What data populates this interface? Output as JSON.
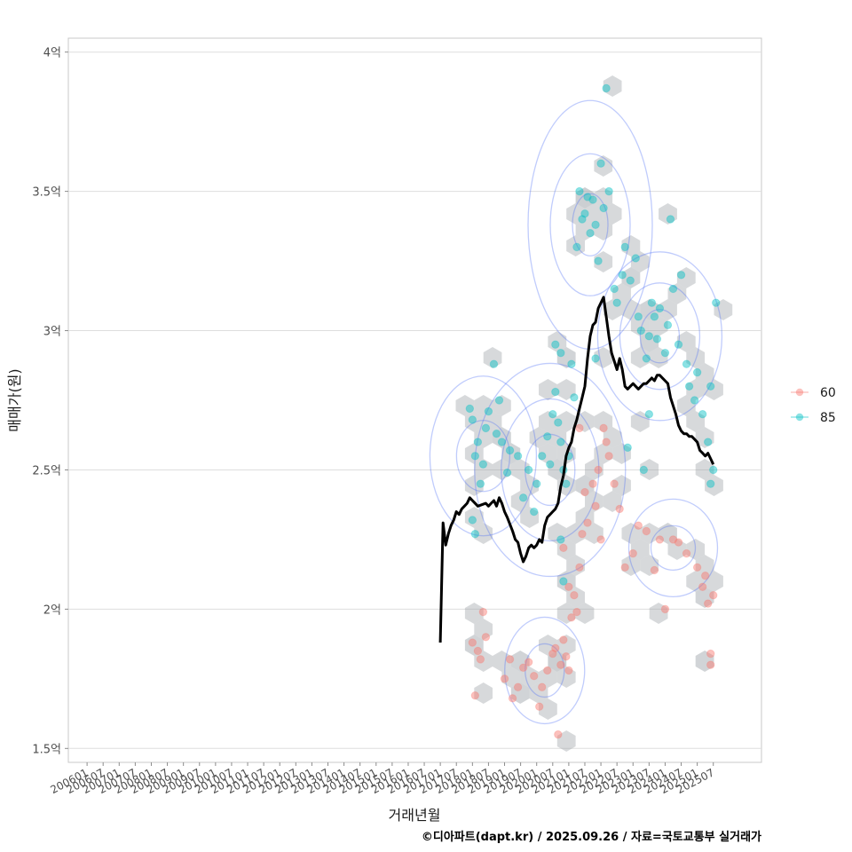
{
  "chart_data": {
    "type": "scatter",
    "title": "",
    "xlabel": "거래년월",
    "ylabel": "매매가(원)",
    "credit": "©디아파트(dapt.kr) / 2025.09.26 / 자료=국토교통부 실거래가",
    "ylim": [
      1.45,
      4.05
    ],
    "y_ticks": [
      {
        "value": 1.5,
        "label": "1.5억"
      },
      {
        "value": 2.0,
        "label": "2억"
      },
      {
        "value": 2.5,
        "label": "2.5억"
      },
      {
        "value": 3.0,
        "label": "3억"
      },
      {
        "value": 3.5,
        "label": "3.5억"
      },
      {
        "value": 4.0,
        "label": "4억"
      }
    ],
    "x_range": [
      "2005-06",
      "2027-01"
    ],
    "x_ticks": [
      "200601",
      "200607",
      "200701",
      "200707",
      "200801",
      "200807",
      "200901",
      "200907",
      "201001",
      "201007",
      "201101",
      "201107",
      "201201",
      "201207",
      "201301",
      "201307",
      "201401",
      "201407",
      "201501",
      "201507",
      "201601",
      "201607",
      "201701",
      "201707",
      "201801",
      "201807",
      "201901",
      "201907",
      "202001",
      "202007",
      "202101",
      "202107",
      "202201",
      "202207",
      "202301",
      "202307",
      "202401",
      "202407",
      "202501",
      "202507"
    ],
    "grid": true,
    "legend_position": "right",
    "series": [
      {
        "name": "60",
        "color": "#f8766d",
        "points": [
          [
            "2018-01",
            1.88
          ],
          [
            "2018-03",
            1.85
          ],
          [
            "2018-04",
            1.82
          ],
          [
            "2018-06",
            1.9
          ],
          [
            "2018-05",
            1.99
          ],
          [
            "2018-02",
            1.69
          ],
          [
            "2019-01",
            1.75
          ],
          [
            "2019-03",
            1.82
          ],
          [
            "2019-04",
            1.68
          ],
          [
            "2019-06",
            1.72
          ],
          [
            "2019-08",
            1.79
          ],
          [
            "2019-10",
            1.81
          ],
          [
            "2019-12",
            1.76
          ],
          [
            "2020-02",
            1.65
          ],
          [
            "2020-03",
            1.72
          ],
          [
            "2020-05",
            1.78
          ],
          [
            "2020-07",
            1.84
          ],
          [
            "2020-08",
            1.86
          ],
          [
            "2020-10",
            1.8
          ],
          [
            "2020-12",
            1.83
          ],
          [
            "2021-01",
            1.78
          ],
          [
            "2020-09",
            1.55
          ],
          [
            "2020-11",
            1.89
          ],
          [
            "2021-02",
            1.97
          ],
          [
            "2021-03",
            2.05
          ],
          [
            "2021-05",
            2.15
          ],
          [
            "2021-04",
            1.99
          ],
          [
            "2021-01",
            2.08
          ],
          [
            "2020-11",
            2.22
          ],
          [
            "2021-06",
            2.27
          ],
          [
            "2021-08",
            2.31
          ],
          [
            "2021-07",
            2.42
          ],
          [
            "2021-10",
            2.45
          ],
          [
            "2021-11",
            2.37
          ],
          [
            "2022-01",
            2.25
          ],
          [
            "2022-02",
            2.65
          ],
          [
            "2022-03",
            2.6
          ],
          [
            "2022-04",
            2.55
          ],
          [
            "2022-06",
            2.45
          ],
          [
            "2022-08",
            2.36
          ],
          [
            "2022-10",
            2.15
          ],
          [
            "2023-01",
            2.2
          ],
          [
            "2023-03",
            2.3
          ],
          [
            "2023-06",
            2.28
          ],
          [
            "2023-09",
            2.14
          ],
          [
            "2023-11",
            2.25
          ],
          [
            "2024-01",
            2.0
          ],
          [
            "2024-04",
            2.25
          ],
          [
            "2024-06",
            2.24
          ],
          [
            "2024-09",
            2.2
          ],
          [
            "2025-01",
            2.15
          ],
          [
            "2025-03",
            2.08
          ],
          [
            "2025-05",
            2.02
          ],
          [
            "2025-06",
            1.84
          ],
          [
            "2025-06",
            1.8
          ],
          [
            "2025-07",
            2.05
          ],
          [
            "2025-04",
            2.12
          ],
          [
            "2021-05",
            2.65
          ],
          [
            "2021-12",
            2.5
          ]
        ]
      },
      {
        "name": "85",
        "color": "#00bfc4",
        "points": [
          [
            "2017-12",
            2.72
          ],
          [
            "2018-01",
            2.68
          ],
          [
            "2018-02",
            2.55
          ],
          [
            "2018-03",
            2.6
          ],
          [
            "2018-04",
            2.45
          ],
          [
            "2018-05",
            2.52
          ],
          [
            "2018-01",
            2.32
          ],
          [
            "2018-02",
            2.27
          ],
          [
            "2018-06",
            2.65
          ],
          [
            "2018-07",
            2.71
          ],
          [
            "2018-09",
            2.88
          ],
          [
            "2018-10",
            2.63
          ],
          [
            "2018-11",
            2.75
          ],
          [
            "2018-12",
            2.6
          ],
          [
            "2019-02",
            2.49
          ],
          [
            "2019-03",
            2.57
          ],
          [
            "2019-06",
            2.55
          ],
          [
            "2019-08",
            2.4
          ],
          [
            "2019-10",
            2.5
          ],
          [
            "2019-12",
            2.35
          ],
          [
            "2020-01",
            2.45
          ],
          [
            "2020-03",
            2.55
          ],
          [
            "2020-05",
            2.62
          ],
          [
            "2020-06",
            2.52
          ],
          [
            "2020-07",
            2.7
          ],
          [
            "2020-08",
            2.78
          ],
          [
            "2020-09",
            2.67
          ],
          [
            "2020-10",
            2.6
          ],
          [
            "2020-11",
            2.5
          ],
          [
            "2020-12",
            2.45
          ],
          [
            "2021-01",
            2.55
          ],
          [
            "2020-08",
            2.95
          ],
          [
            "2020-10",
            2.92
          ],
          [
            "2021-02",
            2.88
          ],
          [
            "2021-03",
            2.76
          ],
          [
            "2020-11",
            2.1
          ],
          [
            "2020-10",
            2.25
          ],
          [
            "2021-04",
            3.3
          ],
          [
            "2021-05",
            3.5
          ],
          [
            "2021-06",
            3.4
          ],
          [
            "2021-07",
            3.42
          ],
          [
            "2021-08",
            3.48
          ],
          [
            "2021-09",
            3.35
          ],
          [
            "2021-10",
            3.47
          ],
          [
            "2021-11",
            3.38
          ],
          [
            "2021-12",
            3.25
          ],
          [
            "2022-01",
            3.6
          ],
          [
            "2022-02",
            3.44
          ],
          [
            "2022-03",
            3.87
          ],
          [
            "2022-04",
            3.5
          ],
          [
            "2022-06",
            3.15
          ],
          [
            "2022-07",
            3.1
          ],
          [
            "2022-09",
            3.2
          ],
          [
            "2022-10",
            3.3
          ],
          [
            "2022-12",
            3.18
          ],
          [
            "2023-02",
            3.26
          ],
          [
            "2023-03",
            3.05
          ],
          [
            "2023-04",
            3.0
          ],
          [
            "2023-06",
            2.9
          ],
          [
            "2023-07",
            2.98
          ],
          [
            "2023-08",
            3.1
          ],
          [
            "2023-09",
            3.05
          ],
          [
            "2023-10",
            2.97
          ],
          [
            "2023-11",
            3.08
          ],
          [
            "2024-01",
            2.92
          ],
          [
            "2024-02",
            3.02
          ],
          [
            "2024-03",
            3.4
          ],
          [
            "2024-04",
            3.15
          ],
          [
            "2024-06",
            2.95
          ],
          [
            "2024-07",
            3.2
          ],
          [
            "2024-09",
            2.88
          ],
          [
            "2024-10",
            2.8
          ],
          [
            "2024-12",
            2.75
          ],
          [
            "2025-01",
            2.85
          ],
          [
            "2025-03",
            2.7
          ],
          [
            "2025-05",
            2.6
          ],
          [
            "2025-06",
            2.8
          ],
          [
            "2025-07",
            2.5
          ],
          [
            "2025-08",
            3.1
          ],
          [
            "2025-06",
            2.45
          ],
          [
            "2023-05",
            2.5
          ],
          [
            "2023-07",
            2.7
          ],
          [
            "2022-11",
            2.58
          ],
          [
            "2021-11",
            2.9
          ]
        ]
      }
    ],
    "trend_line": {
      "name": "moving average",
      "color": "#000000",
      "points": [
        [
          "2017-01",
          1.88
        ],
        [
          "2017-02",
          2.31
        ],
        [
          "2017-03",
          2.23
        ],
        [
          "2017-04",
          2.27
        ],
        [
          "2017-05",
          2.3
        ],
        [
          "2017-06",
          2.32
        ],
        [
          "2017-07",
          2.35
        ],
        [
          "2017-08",
          2.34
        ],
        [
          "2017-09",
          2.36
        ],
        [
          "2017-10",
          2.37
        ],
        [
          "2017-11",
          2.38
        ],
        [
          "2017-12",
          2.4
        ],
        [
          "2018-01",
          2.39
        ],
        [
          "2018-02",
          2.38
        ],
        [
          "2018-03",
          2.37
        ],
        [
          "2018-06",
          2.38
        ],
        [
          "2018-07",
          2.37
        ],
        [
          "2018-08",
          2.38
        ],
        [
          "2018-09",
          2.39
        ],
        [
          "2018-10",
          2.37
        ],
        [
          "2018-11",
          2.4
        ],
        [
          "2018-12",
          2.38
        ],
        [
          "2019-01",
          2.35
        ],
        [
          "2019-02",
          2.33
        ],
        [
          "2019-04",
          2.28
        ],
        [
          "2019-05",
          2.25
        ],
        [
          "2019-06",
          2.24
        ],
        [
          "2019-07",
          2.2
        ],
        [
          "2019-08",
          2.17
        ],
        [
          "2019-09",
          2.19
        ],
        [
          "2019-10",
          2.22
        ],
        [
          "2019-11",
          2.23
        ],
        [
          "2019-12",
          2.22
        ],
        [
          "2020-01",
          2.23
        ],
        [
          "2020-02",
          2.25
        ],
        [
          "2020-03",
          2.24
        ],
        [
          "2020-04",
          2.3
        ],
        [
          "2020-05",
          2.33
        ],
        [
          "2020-06",
          2.34
        ],
        [
          "2020-07",
          2.35
        ],
        [
          "2020-08",
          2.36
        ],
        [
          "2020-09",
          2.38
        ],
        [
          "2020-10",
          2.44
        ],
        [
          "2020-11",
          2.48
        ],
        [
          "2020-12",
          2.55
        ],
        [
          "2021-01",
          2.58
        ],
        [
          "2021-02",
          2.6
        ],
        [
          "2021-03",
          2.65
        ],
        [
          "2021-04",
          2.68
        ],
        [
          "2021-05",
          2.72
        ],
        [
          "2021-06",
          2.76
        ],
        [
          "2021-07",
          2.8
        ],
        [
          "2021-08",
          2.9
        ],
        [
          "2021-09",
          2.98
        ],
        [
          "2021-10",
          3.02
        ],
        [
          "2021-11",
          3.03
        ],
        [
          "2021-12",
          3.08
        ],
        [
          "2022-01",
          3.1
        ],
        [
          "2022-02",
          3.12
        ],
        [
          "2022-03",
          3.05
        ],
        [
          "2022-04",
          2.98
        ],
        [
          "2022-05",
          2.92
        ],
        [
          "2022-06",
          2.89
        ],
        [
          "2022-07",
          2.86
        ],
        [
          "2022-08",
          2.9
        ],
        [
          "2022-09",
          2.86
        ],
        [
          "2022-10",
          2.8
        ],
        [
          "2022-11",
          2.79
        ],
        [
          "2022-12",
          2.8
        ],
        [
          "2023-01",
          2.81
        ],
        [
          "2023-02",
          2.8
        ],
        [
          "2023-03",
          2.79
        ],
        [
          "2023-04",
          2.8
        ],
        [
          "2023-05",
          2.81
        ],
        [
          "2023-06",
          2.81
        ],
        [
          "2023-07",
          2.82
        ],
        [
          "2023-08",
          2.83
        ],
        [
          "2023-09",
          2.82
        ],
        [
          "2023-10",
          2.84
        ],
        [
          "2023-11",
          2.84
        ],
        [
          "2023-12",
          2.83
        ],
        [
          "2024-01",
          2.82
        ],
        [
          "2024-02",
          2.81
        ],
        [
          "2024-03",
          2.76
        ],
        [
          "2024-04",
          2.73
        ],
        [
          "2024-05",
          2.7
        ],
        [
          "2024-06",
          2.66
        ],
        [
          "2024-07",
          2.64
        ],
        [
          "2024-08",
          2.63
        ],
        [
          "2024-09",
          2.63
        ],
        [
          "2024-10",
          2.62
        ],
        [
          "2024-11",
          2.62
        ],
        [
          "2024-12",
          2.61
        ],
        [
          "2025-01",
          2.6
        ],
        [
          "2025-02",
          2.57
        ],
        [
          "2025-03",
          2.56
        ],
        [
          "2025-04",
          2.55
        ],
        [
          "2025-05",
          2.56
        ],
        [
          "2025-06",
          2.54
        ],
        [
          "2025-07",
          2.52
        ]
      ]
    }
  }
}
